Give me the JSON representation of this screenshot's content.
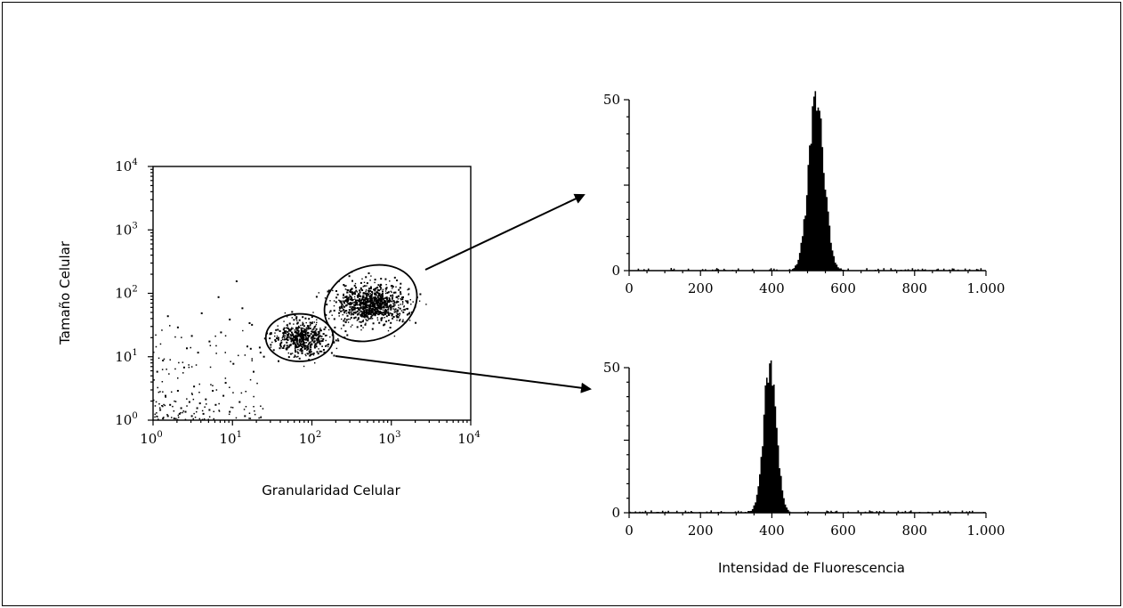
{
  "chart_data": [
    {
      "type": "scatter",
      "xlabel": "Granularidad Celular",
      "ylabel": "Tamaño Celular",
      "xscale": "log",
      "yscale": "log",
      "xlim": [
        1,
        10000
      ],
      "ylim": [
        1,
        10000
      ],
      "x_ticks": [
        {
          "base": "10",
          "exp": "0"
        },
        {
          "base": "10",
          "exp": "1"
        },
        {
          "base": "10",
          "exp": "2"
        },
        {
          "base": "10",
          "exp": "3"
        },
        {
          "base": "10",
          "exp": "4"
        }
      ],
      "y_ticks": [
        {
          "base": "10",
          "exp": "0"
        },
        {
          "base": "10",
          "exp": "1"
        },
        {
          "base": "10",
          "exp": "2"
        },
        {
          "base": "10",
          "exp": "3"
        },
        {
          "base": "10",
          "exp": "4"
        }
      ],
      "gates": [
        {
          "center": [
            70,
            20
          ],
          "span_x_decades": 0.85,
          "span_y_decades": 0.75
        },
        {
          "center": [
            550,
            70
          ],
          "span_x_decades": 1.2,
          "span_y_decades": 1.15,
          "tilt_deg": -22
        }
      ],
      "populations": [
        {
          "center": [
            70,
            20
          ],
          "count": 520,
          "spread_decades": [
            0.18,
            0.14
          ]
        },
        {
          "center": [
            550,
            70
          ],
          "count": 900,
          "spread_decades": [
            0.22,
            0.15
          ]
        }
      ],
      "background_points": [
        [
          1.3,
          1.1
        ],
        [
          1.5,
          1.2
        ],
        [
          1.8,
          1.1
        ],
        [
          2.1,
          1.3
        ],
        [
          2.5,
          1.4
        ],
        [
          3.0,
          1.2
        ],
        [
          3.5,
          1.6
        ],
        [
          4.2,
          1.3
        ],
        [
          5.0,
          1.5
        ],
        [
          1.2,
          1.5
        ],
        [
          1.6,
          1.8
        ],
        [
          2.2,
          1.6
        ],
        [
          2.8,
          2.0
        ],
        [
          3.8,
          1.9
        ],
        [
          4.5,
          2.2
        ],
        [
          6.0,
          1.8
        ],
        [
          7.5,
          2.5
        ],
        [
          9.0,
          1.4
        ],
        [
          1.4,
          2.5
        ],
        [
          2.0,
          3.0
        ],
        [
          3.2,
          3.5
        ],
        [
          5.5,
          3.0
        ],
        [
          8.0,
          4.0
        ],
        [
          12,
          2.0
        ],
        [
          14,
          1.2
        ],
        [
          1.1,
          6.0
        ],
        [
          1.3,
          9.0
        ],
        [
          2.4,
          7.0
        ],
        [
          3.6,
          12
        ],
        [
          5.0,
          18
        ],
        [
          7.0,
          25
        ],
        [
          10,
          8.0
        ],
        [
          15,
          15
        ],
        [
          18,
          6.0
        ],
        [
          22,
          12
        ],
        [
          9.0,
          40
        ],
        [
          4.0,
          50
        ],
        [
          2.0,
          30
        ],
        [
          1.5,
          45
        ],
        [
          6.5,
          90
        ],
        [
          11,
          160
        ],
        [
          16,
          35
        ],
        [
          25,
          20
        ],
        [
          13,
          60
        ],
        [
          3.0,
          22
        ],
        [
          2.6,
          14
        ]
      ]
    },
    {
      "type": "histogram",
      "xlim": [
        0,
        1000
      ],
      "ylim": [
        0,
        50
      ],
      "x_tick_labels": [
        "0",
        "200",
        "400",
        "600",
        "800",
        "1.000"
      ],
      "y_tick_labels": [
        "0",
        "50"
      ],
      "peak_center": 525,
      "peak_height": 50,
      "peak_sd": 22,
      "baseline_noise": 2
    },
    {
      "type": "histogram",
      "xlabel": "Intensidad de Fluorescencia",
      "xlim": [
        0,
        1000
      ],
      "ylim": [
        0,
        50
      ],
      "x_tick_labels": [
        "0",
        "200",
        "400",
        "600",
        "800",
        "1.000"
      ],
      "y_tick_labels": [
        "0",
        "50"
      ],
      "peak_center": 395,
      "peak_height": 52,
      "peak_sd": 18,
      "baseline_noise": 2
    }
  ]
}
